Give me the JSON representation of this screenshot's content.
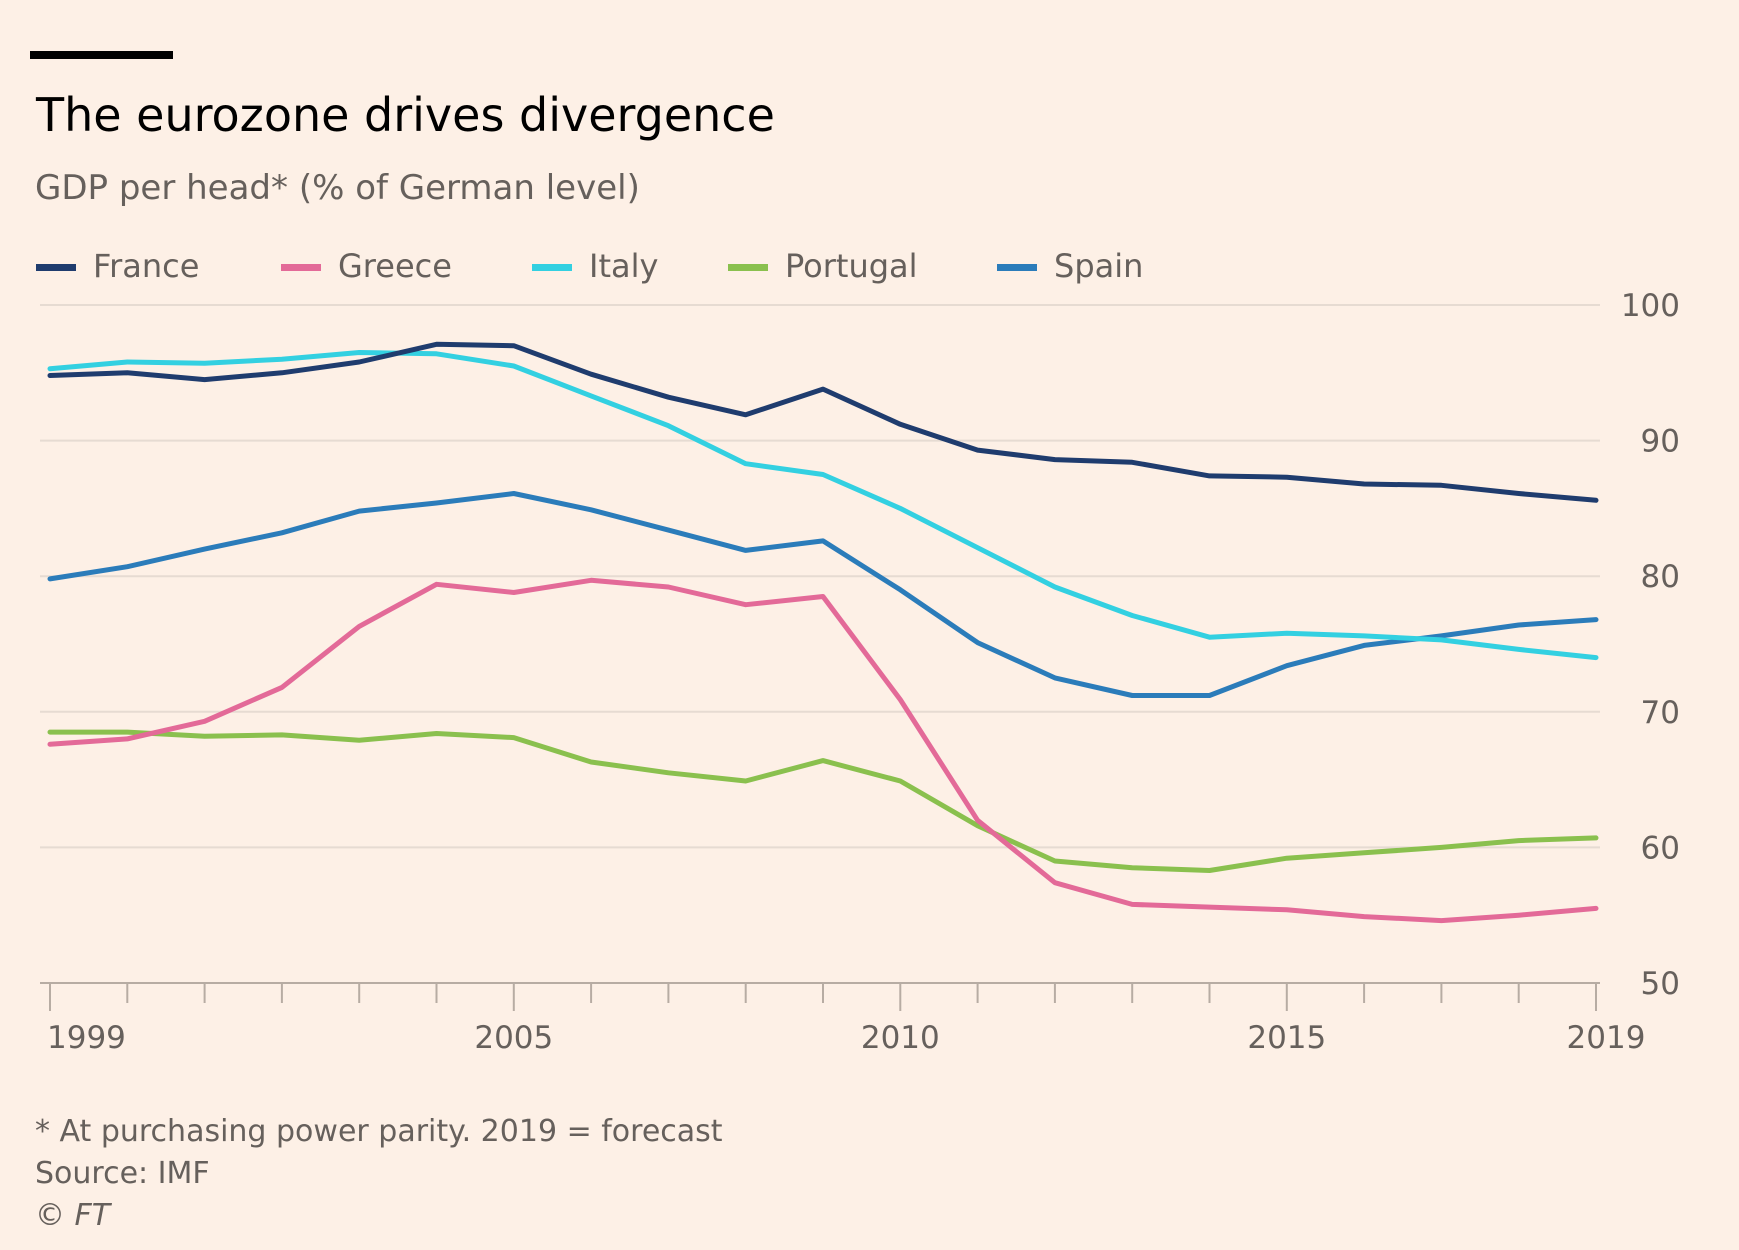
{
  "chart_data": {
    "type": "line",
    "title": "The eurozone drives divergence",
    "subtitle": "GDP per head* (% of German level)",
    "x": [
      1999,
      2000,
      2001,
      2002,
      2003,
      2004,
      2005,
      2006,
      2007,
      2008,
      2009,
      2010,
      2011,
      2012,
      2013,
      2014,
      2015,
      2016,
      2017,
      2018,
      2019
    ],
    "x_tick_labels": [
      "1999",
      "2005",
      "2010",
      "2015",
      "2019"
    ],
    "y_tick_labels": [
      "100",
      "90",
      "80",
      "70",
      "60",
      "50"
    ],
    "ylim": [
      50,
      100
    ],
    "y_axis_side": "right",
    "grid": true,
    "legend_placement": "top-left",
    "series": [
      {
        "name": "France",
        "color": "#1f3c6e",
        "values": [
          94.8,
          95.0,
          94.5,
          95.0,
          95.8,
          97.1,
          97.0,
          94.9,
          93.2,
          91.9,
          93.8,
          91.2,
          89.3,
          88.6,
          88.4,
          87.4,
          87.3,
          86.8,
          86.7,
          86.1,
          85.6
        ]
      },
      {
        "name": "Greece",
        "color": "#e36a98",
        "values": [
          67.6,
          68.0,
          69.3,
          71.8,
          76.3,
          79.4,
          78.8,
          79.7,
          79.2,
          77.9,
          78.5,
          70.9,
          62.0,
          57.4,
          55.8,
          55.6,
          55.4,
          54.9,
          54.6,
          55.0,
          55.5
        ]
      },
      {
        "name": "Italy",
        "color": "#33d0e1",
        "values": [
          95.3,
          95.8,
          95.7,
          96.0,
          96.5,
          96.4,
          95.5,
          93.3,
          91.1,
          88.3,
          87.5,
          85.0,
          82.1,
          79.2,
          77.1,
          75.5,
          75.8,
          75.6,
          75.3,
          74.6,
          74.0
        ]
      },
      {
        "name": "Portugal",
        "color": "#8ac04e",
        "values": [
          68.5,
          68.5,
          68.2,
          68.3,
          67.9,
          68.4,
          68.1,
          66.3,
          65.5,
          64.9,
          66.4,
          64.9,
          61.6,
          59.0,
          58.5,
          58.3,
          59.2,
          59.6,
          60.0,
          60.5,
          60.7
        ]
      },
      {
        "name": "Spain",
        "color": "#2b7cba",
        "values": [
          79.8,
          80.7,
          82.0,
          83.2,
          84.8,
          85.4,
          86.1,
          84.9,
          83.4,
          81.9,
          82.6,
          79.0,
          75.1,
          72.5,
          71.2,
          71.2,
          73.4,
          74.9,
          75.6,
          76.4,
          76.8
        ]
      }
    ]
  },
  "footnotes": {
    "note": "* At purchasing power parity. 2019 = forecast",
    "source": "Source: IMF",
    "copyright_symbol": "©",
    "copyright_owner": "FT"
  }
}
